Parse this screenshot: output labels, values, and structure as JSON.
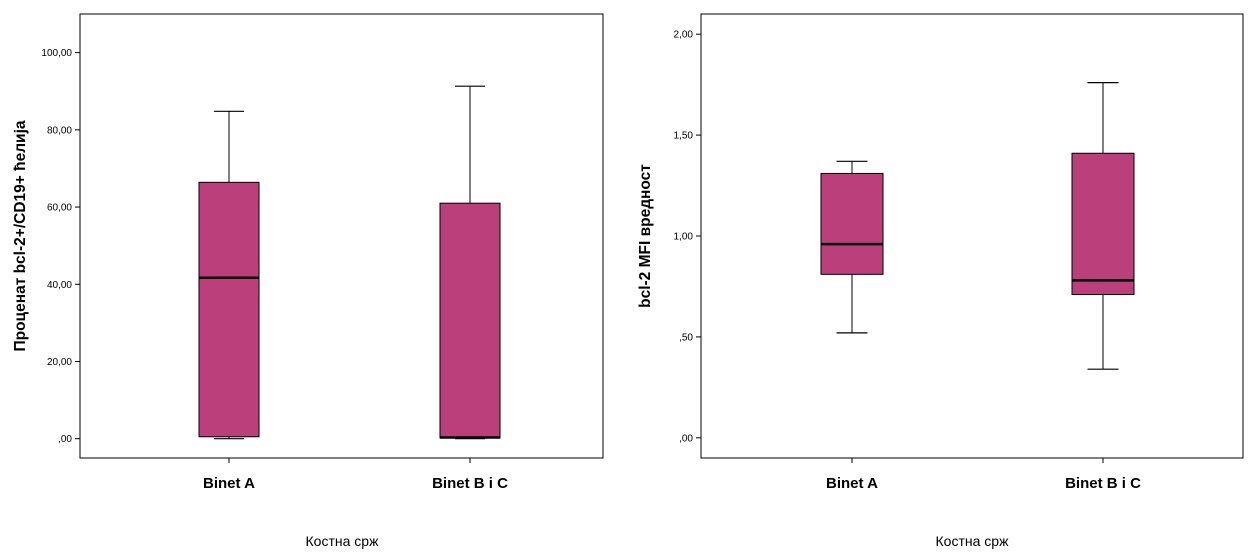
{
  "chart_data": [
    {
      "type": "box",
      "xlabel": "Костна срж",
      "ylabel": "Проценат bcl-2+/CD19+ ћелија",
      "ylim": [
        -5,
        110
      ],
      "yticks": [
        0,
        20,
        40,
        60,
        80,
        100
      ],
      "ytick_labels": [
        ",00",
        "20,00",
        "40,00",
        "60,00",
        "80,00",
        "100,00"
      ],
      "categories": [
        "Binet A",
        "Binet B i C"
      ],
      "box_color": "#bb3f7b",
      "grid": false,
      "boxes": [
        {
          "category": "Binet A",
          "min": 0.0,
          "q1": 0.5,
          "median": 41.7,
          "q3": 66.4,
          "max": 84.8
        },
        {
          "category": "Binet B i C",
          "min": 0.0,
          "q1": 0.2,
          "median": 0.3,
          "q3": 61.0,
          "max": 91.3
        }
      ]
    },
    {
      "type": "box",
      "xlabel": "Костна срж",
      "ylabel": "bcl-2 MFI вредност",
      "ylim": [
        -0.1,
        2.1
      ],
      "yticks": [
        0,
        0.5,
        1.0,
        1.5,
        2.0
      ],
      "ytick_labels": [
        ",00",
        ",50",
        "1,00",
        "1,50",
        "2,00"
      ],
      "categories": [
        "Binet A",
        "Binet B i C"
      ],
      "box_color": "#bb3f7b",
      "grid": false,
      "boxes": [
        {
          "category": "Binet A",
          "min": 0.52,
          "q1": 0.81,
          "median": 0.96,
          "q3": 1.31,
          "max": 1.37
        },
        {
          "category": "Binet B i C",
          "min": 0.34,
          "q1": 0.71,
          "median": 0.78,
          "q3": 1.41,
          "max": 1.76
        }
      ]
    }
  ]
}
